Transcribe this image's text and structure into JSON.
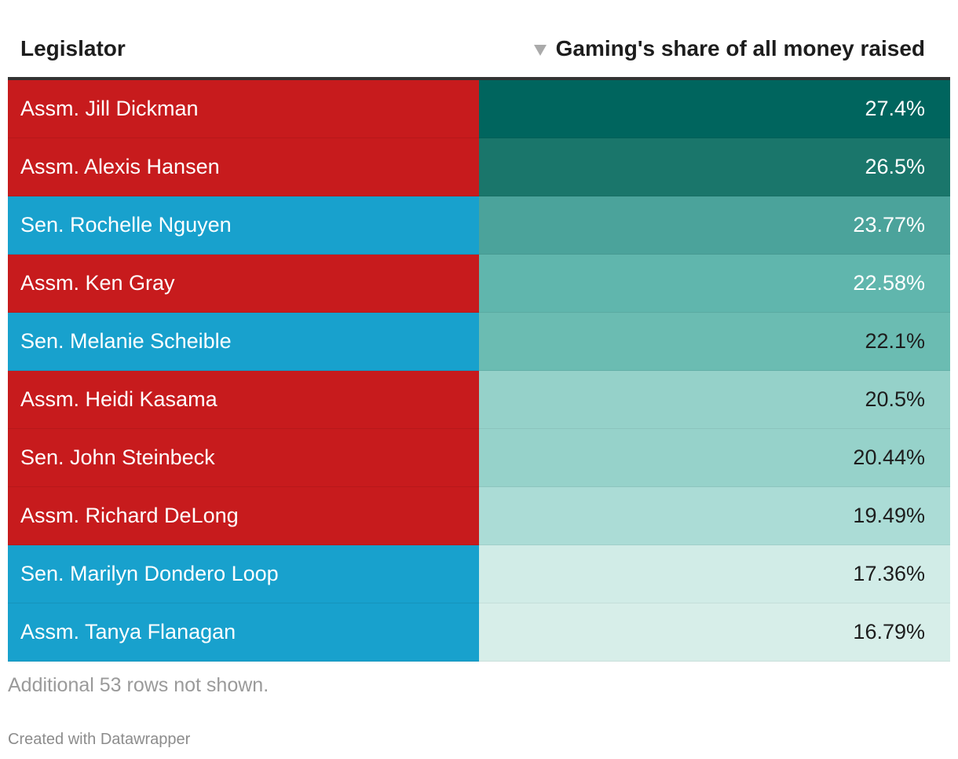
{
  "table": {
    "headers": {
      "legislator": "Legislator",
      "share": "Gaming's share of all money raised"
    },
    "sort_icon": "sort-descending-triangle-icon",
    "colors": {
      "republican": "#c71b1d",
      "democrat": "#18a1cd"
    },
    "footnote": "Additional 53 rows not shown.",
    "credit": "Created with Datawrapper"
  },
  "chart_data": {
    "type": "table",
    "columns": [
      "Legislator",
      "Gaming's share of all money raised"
    ],
    "rows": [
      {
        "name": "Assm. Jill Dickman",
        "share_label": "27.4%",
        "share": 27.4,
        "party_color": "#c71b1d",
        "value_color": "#00655e",
        "text_color": "#ffffff"
      },
      {
        "name": "Assm. Alexis Hansen",
        "share_label": "26.5%",
        "share": 26.5,
        "party_color": "#c71b1d",
        "value_color": "#1a766b",
        "text_color": "#ffffff"
      },
      {
        "name": "Sen. Rochelle Nguyen",
        "share_label": "23.77%",
        "share": 23.77,
        "party_color": "#18a1cd",
        "value_color": "#4ba39b",
        "text_color": "#ffffff"
      },
      {
        "name": "Assm. Ken Gray",
        "share_label": "22.58%",
        "share": 22.58,
        "party_color": "#c71b1d",
        "value_color": "#60b6ad",
        "text_color": "#ffffff"
      },
      {
        "name": "Sen. Melanie Scheible",
        "share_label": "22.1%",
        "share": 22.1,
        "party_color": "#18a1cd",
        "value_color": "#6bbcb2",
        "text_color": "#1d1d1d"
      },
      {
        "name": "Assm. Heidi Kasama",
        "share_label": "20.5%",
        "share": 20.5,
        "party_color": "#c71b1d",
        "value_color": "#95d1c9",
        "text_color": "#1d1d1d"
      },
      {
        "name": "Sen. John Steinbeck",
        "share_label": "20.44%",
        "share": 20.44,
        "party_color": "#c71b1d",
        "value_color": "#96d2ca",
        "text_color": "#1d1d1d"
      },
      {
        "name": "Assm. Richard DeLong",
        "share_label": "19.49%",
        "share": 19.49,
        "party_color": "#c71b1d",
        "value_color": "#abdcd6",
        "text_color": "#1d1d1d"
      },
      {
        "name": "Sen. Marilyn Dondero Loop",
        "share_label": "17.36%",
        "share": 17.36,
        "party_color": "#18a1cd",
        "value_color": "#d1ece7",
        "text_color": "#1d1d1d"
      },
      {
        "name": "Assm. Tanya Flanagan",
        "share_label": "16.79%",
        "share": 16.79,
        "party_color": "#18a1cd",
        "value_color": "#d7eee9",
        "text_color": "#1d1d1d"
      }
    ]
  }
}
